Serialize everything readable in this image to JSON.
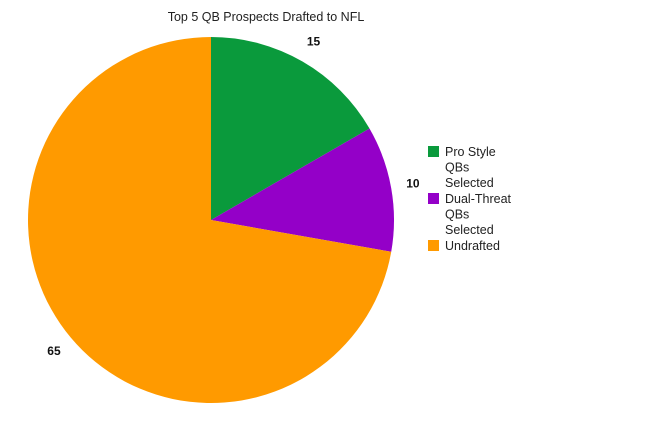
{
  "chart_data": {
    "type": "pie",
    "title": "Top 5 QB Prospects Drafted to NFL",
    "categories": [
      "Pro Style QBs Selected",
      "Dual-Threat QBs Selected",
      "Undrafted"
    ],
    "values": [
      15,
      10,
      65
    ],
    "data_labels": [
      "15",
      "10",
      "65"
    ],
    "colors": [
      "#0a9a3c",
      "#9400c8",
      "#ff9a00"
    ],
    "legend": {
      "placement": "right",
      "entries": [
        {
          "label_lines": [
            "Pro Style",
            "QBs",
            "Selected"
          ],
          "color": "#0a9a3c"
        },
        {
          "label_lines": [
            "Dual-Threat",
            "QBs",
            "Selected"
          ],
          "color": "#9400c8"
        },
        {
          "label_lines": [
            "Undrafted"
          ],
          "color": "#ff9a00"
        }
      ]
    },
    "start_angle_deg": 0,
    "direction": "clockwise"
  }
}
